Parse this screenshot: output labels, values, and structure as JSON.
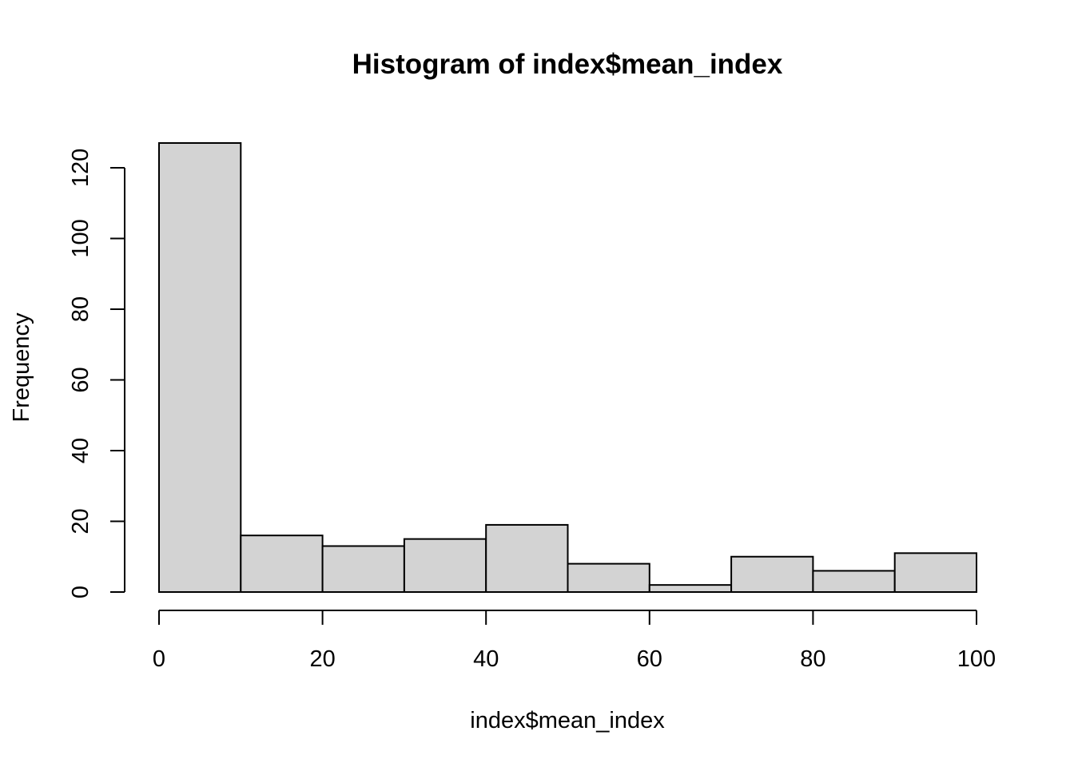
{
  "chart_data": {
    "type": "bar",
    "subtype": "histogram",
    "title": "Histogram of index$mean_index",
    "xlabel": "index$mean_index",
    "ylabel": "Frequency",
    "bins": [
      {
        "from": 0,
        "to": 10,
        "count": 127
      },
      {
        "from": 10,
        "to": 20,
        "count": 16
      },
      {
        "from": 20,
        "to": 30,
        "count": 13
      },
      {
        "from": 30,
        "to": 40,
        "count": 15
      },
      {
        "from": 40,
        "to": 50,
        "count": 19
      },
      {
        "from": 50,
        "to": 60,
        "count": 8
      },
      {
        "from": 60,
        "to": 70,
        "count": 2
      },
      {
        "from": 70,
        "to": 80,
        "count": 10
      },
      {
        "from": 80,
        "to": 90,
        "count": 6
      },
      {
        "from": 90,
        "to": 100,
        "count": 11
      }
    ],
    "xlim": [
      0,
      100
    ],
    "ylim": [
      0,
      127
    ],
    "x_ticks": [
      0,
      20,
      40,
      60,
      80,
      100
    ],
    "y_ticks": [
      0,
      20,
      40,
      60,
      80,
      100,
      120
    ],
    "bar_color": "#d3d3d3",
    "bar_border_color": "#000000",
    "grid": false,
    "legend": "none"
  }
}
